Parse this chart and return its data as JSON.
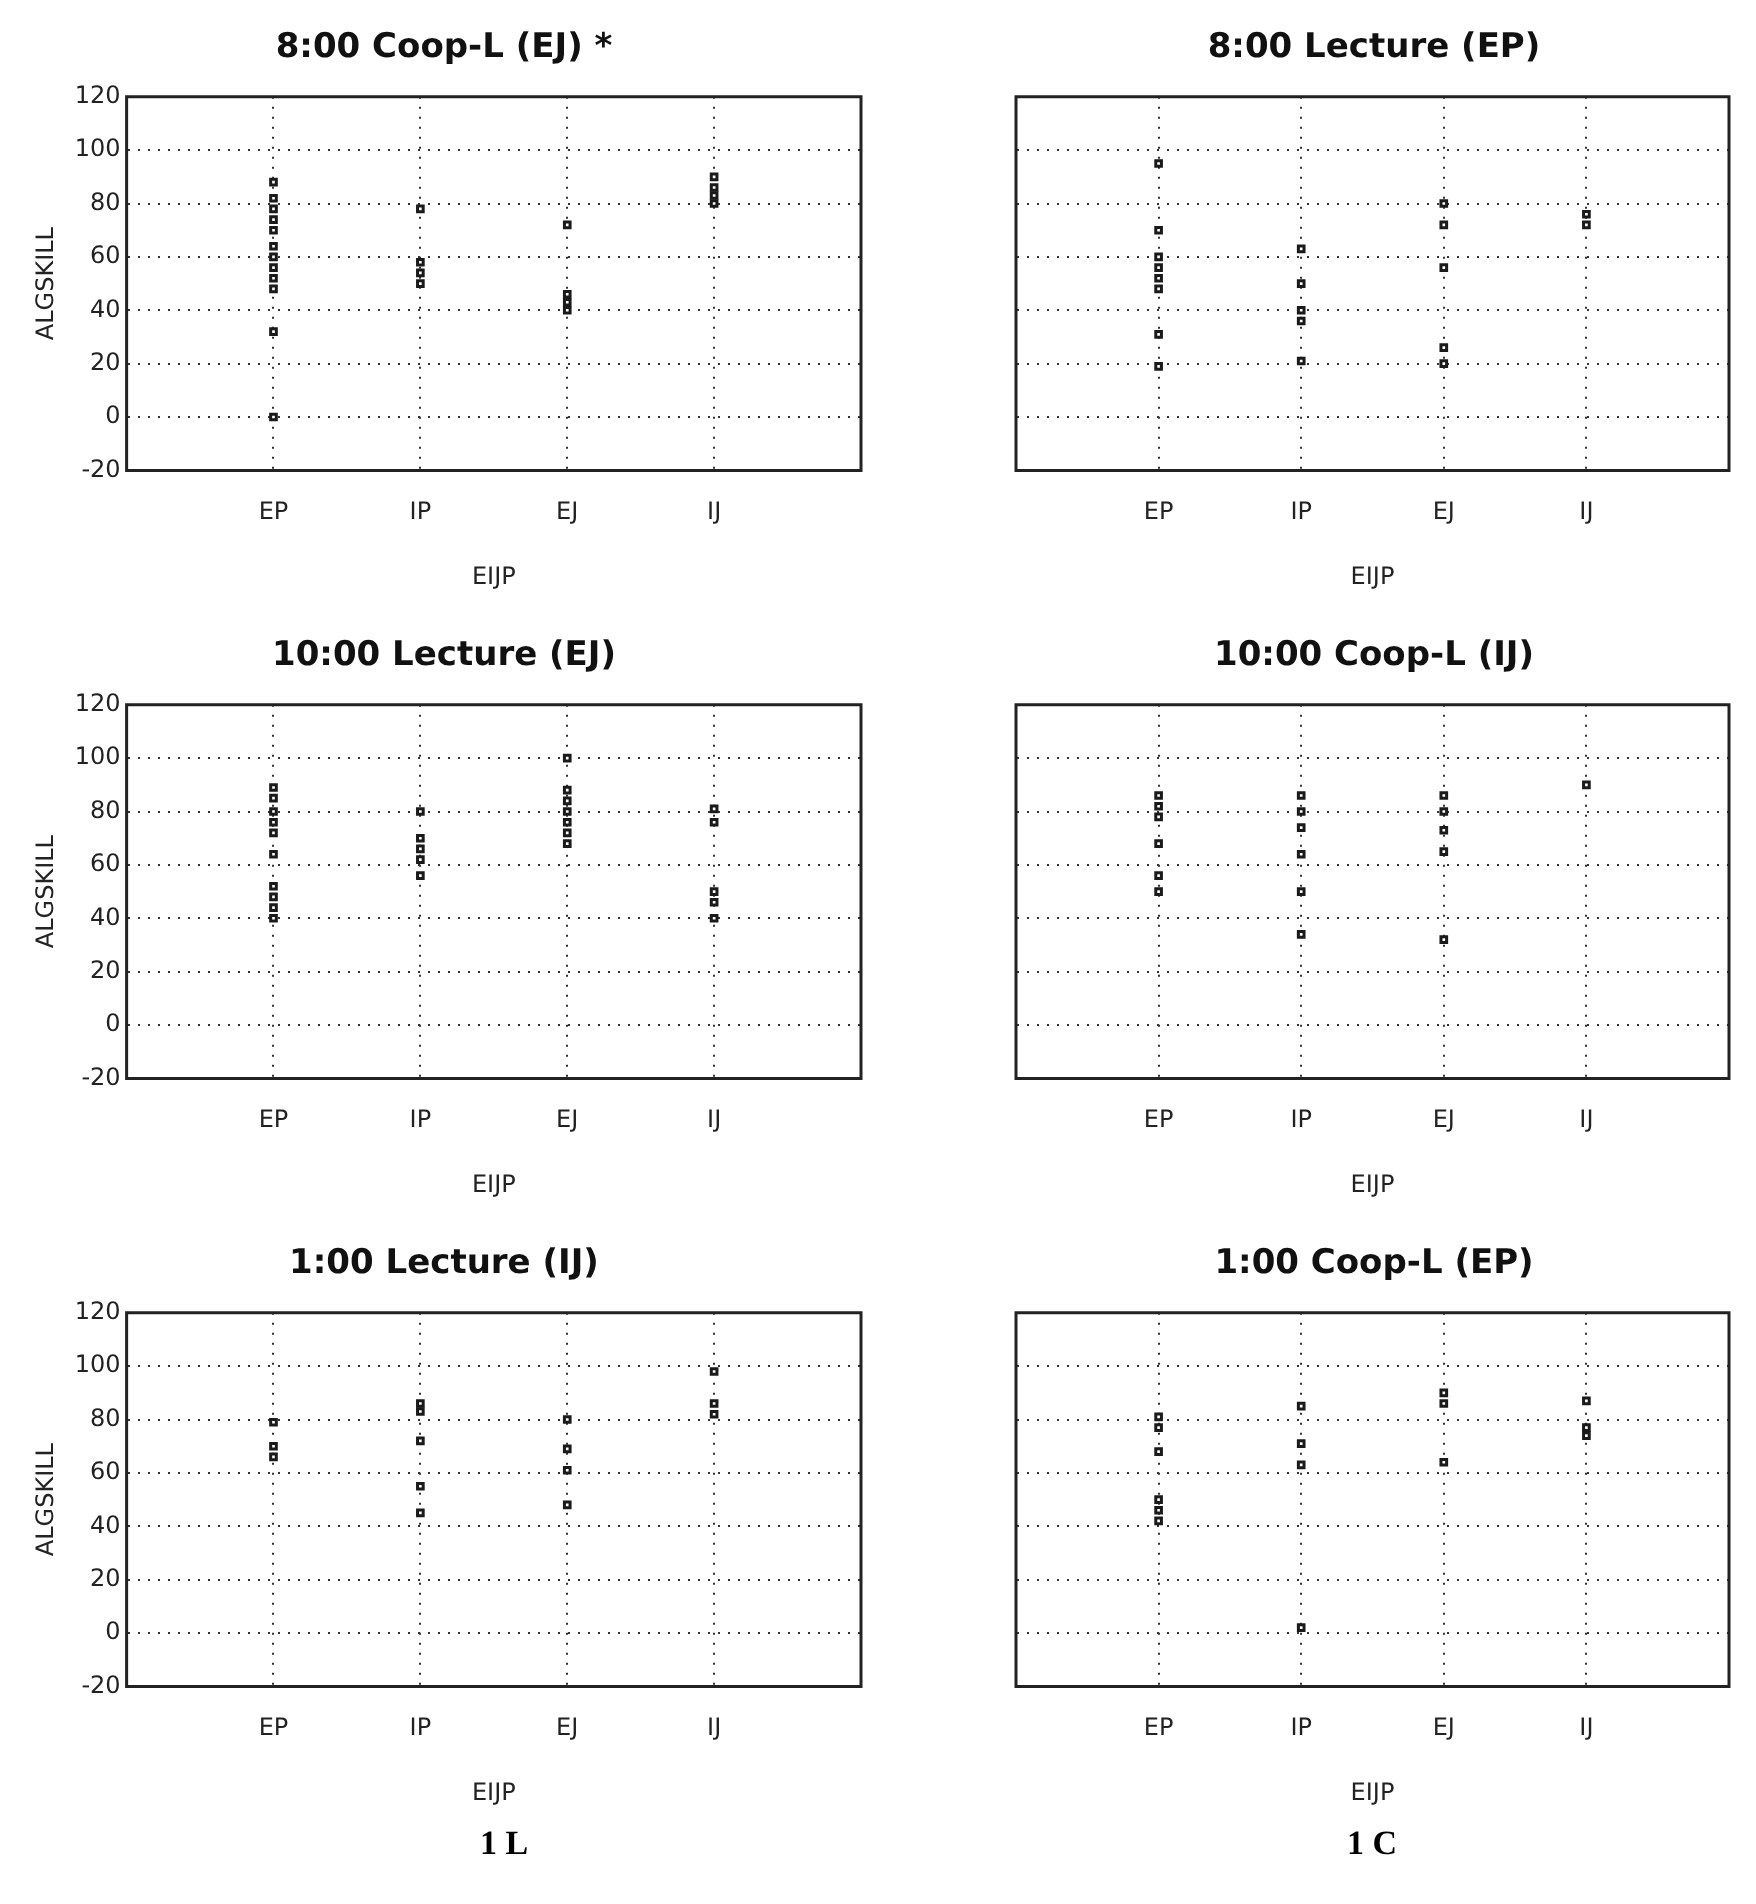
{
  "chart_data": [
    {
      "type": "scatter",
      "title": "8:00 Coop-L (EJ) *",
      "xlabel": "EIJP",
      "ylabel": "ALGSKILL",
      "categories": [
        "EP",
        "IP",
        "EJ",
        "IJ"
      ],
      "ylim": [
        -20,
        120
      ],
      "yticks": [
        -20,
        0,
        20,
        40,
        60,
        80,
        100,
        120
      ],
      "grid": true,
      "marker": "square",
      "series": [
        {
          "color": "#1a1a1a",
          "x": [
            "EP",
            "EP",
            "EP",
            "EP",
            "EP",
            "EP",
            "EP",
            "EP",
            "EP",
            "EP",
            "EP",
            "EP",
            "IP",
            "IP",
            "IP",
            "IP",
            "EJ",
            "EJ",
            "EJ",
            "EJ",
            "IJ",
            "IJ",
            "IJ",
            "IJ"
          ],
          "values": [
            88,
            82,
            78,
            74,
            70,
            64,
            60,
            56,
            52,
            48,
            32,
            0,
            78,
            58,
            54,
            50,
            72,
            46,
            43,
            40,
            90,
            86,
            83,
            80
          ]
        }
      ]
    },
    {
      "type": "scatter",
      "title": "8:00 Lecture (EP)",
      "xlabel": "EIJP",
      "categories": [
        "EP",
        "IP",
        "EJ",
        "IJ"
      ],
      "ylim": [
        -20,
        120
      ],
      "yticks": [
        -20,
        0,
        20,
        40,
        60,
        80,
        100,
        120
      ],
      "grid": true,
      "marker": "square",
      "tick_labels": "x",
      "series": [
        {
          "color": "#1a1a1a",
          "x": [
            "EP",
            "EP",
            "EP",
            "EP",
            "EP",
            "EP",
            "EP",
            "EP",
            "IP",
            "IP",
            "IP",
            "IP",
            "IP",
            "EJ",
            "EJ",
            "EJ",
            "EJ",
            "EJ",
            "IJ",
            "IJ"
          ],
          "values": [
            95,
            70,
            60,
            56,
            52,
            48,
            31,
            19,
            63,
            50,
            40,
            36,
            21,
            80,
            72,
            56,
            26,
            20,
            76,
            72
          ]
        }
      ]
    },
    {
      "type": "scatter",
      "title": "10:00 Lecture (EJ)",
      "xlabel": "EIJP",
      "ylabel": "ALGSKILL",
      "categories": [
        "EP",
        "IP",
        "EJ",
        "IJ"
      ],
      "ylim": [
        -20,
        120
      ],
      "yticks": [
        -20,
        0,
        20,
        40,
        60,
        80,
        100,
        120
      ],
      "grid": true,
      "marker": "square",
      "series": [
        {
          "color": "#1a1a1a",
          "x": [
            "EP",
            "EP",
            "EP",
            "EP",
            "EP",
            "EP",
            "EP",
            "EP",
            "EP",
            "EP",
            "IP",
            "IP",
            "IP",
            "IP",
            "IP",
            "EJ",
            "EJ",
            "EJ",
            "EJ",
            "EJ",
            "EJ",
            "EJ",
            "IJ",
            "IJ",
            "IJ",
            "IJ",
            "IJ"
          ],
          "values": [
            89,
            85,
            80,
            76,
            72,
            64,
            52,
            48,
            44,
            40,
            80,
            70,
            66,
            62,
            56,
            100,
            88,
            84,
            80,
            76,
            72,
            68,
            81,
            76,
            50,
            46,
            40
          ]
        }
      ]
    },
    {
      "type": "scatter",
      "title": "10:00 Coop-L (IJ)",
      "xlabel": "EIJP",
      "categories": [
        "EP",
        "IP",
        "EJ",
        "IJ"
      ],
      "ylim": [
        -20,
        120
      ],
      "yticks": [
        -20,
        0,
        20,
        40,
        60,
        80,
        100,
        120
      ],
      "grid": true,
      "marker": "square",
      "tick_labels": "x",
      "series": [
        {
          "color": "#1a1a1a",
          "x": [
            "EP",
            "EP",
            "EP",
            "EP",
            "EP",
            "EP",
            "IP",
            "IP",
            "IP",
            "IP",
            "IP",
            "IP",
            "EJ",
            "EJ",
            "EJ",
            "EJ",
            "EJ",
            "IJ"
          ],
          "values": [
            86,
            82,
            78,
            68,
            56,
            50,
            86,
            80,
            74,
            64,
            50,
            34,
            86,
            80,
            73,
            65,
            32,
            90
          ]
        }
      ]
    },
    {
      "type": "scatter",
      "title": "1:00 Lecture (IJ)",
      "xlabel": "EIJP",
      "ylabel": "ALGSKILL",
      "categories": [
        "EP",
        "IP",
        "EJ",
        "IJ"
      ],
      "ylim": [
        -20,
        120
      ],
      "yticks": [
        -20,
        0,
        20,
        40,
        60,
        80,
        100,
        120
      ],
      "grid": true,
      "marker": "square",
      "annotations": [
        "1 L"
      ],
      "series": [
        {
          "color": "#1a1a1a",
          "x": [
            "EP",
            "EP",
            "EP",
            "IP",
            "IP",
            "IP",
            "IP",
            "IP",
            "EJ",
            "EJ",
            "EJ",
            "EJ",
            "IJ",
            "IJ",
            "IJ"
          ],
          "values": [
            79,
            70,
            66,
            86,
            83,
            72,
            55,
            45,
            80,
            69,
            61,
            48,
            98,
            86,
            82
          ]
        }
      ]
    },
    {
      "type": "scatter",
      "title": "1:00 Coop-L (EP)",
      "xlabel": "EIJP",
      "categories": [
        "EP",
        "IP",
        "EJ",
        "IJ"
      ],
      "ylim": [
        -20,
        120
      ],
      "yticks": [
        -20,
        0,
        20,
        40,
        60,
        80,
        100,
        120
      ],
      "grid": true,
      "marker": "square",
      "tick_labels": "x",
      "annotations": [
        "1 C"
      ],
      "series": [
        {
          "color": "#1a1a1a",
          "x": [
            "EP",
            "EP",
            "EP",
            "EP",
            "EP",
            "EP",
            "IP",
            "IP",
            "IP",
            "IP",
            "EJ",
            "EJ",
            "EJ",
            "IJ",
            "IJ",
            "IJ"
          ],
          "values": [
            81,
            77,
            68,
            50,
            46,
            42,
            85,
            71,
            63,
            2,
            90,
            86,
            64,
            87,
            77,
            74
          ]
        }
      ]
    }
  ]
}
